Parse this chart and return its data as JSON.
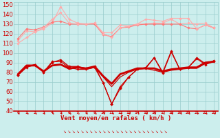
{
  "xlabel": "Vent moyen/en rafales ( km/h )",
  "x": [
    0,
    1,
    2,
    3,
    4,
    5,
    6,
    7,
    8,
    9,
    10,
    11,
    12,
    13,
    14,
    15,
    16,
    17,
    18,
    19,
    20,
    21,
    22,
    23
  ],
  "ylim": [
    40,
    153
  ],
  "yticks": [
    40,
    50,
    60,
    70,
    80,
    90,
    100,
    110,
    120,
    130,
    140,
    150
  ],
  "bg_color": "#cceeed",
  "grid_color": "#99cccc",
  "pink_light": "#ffaaaa",
  "pink_mid": "#ff7777",
  "dark_red": "#cc0000",
  "rafale1": [
    110,
    116,
    122,
    126,
    135,
    142,
    131,
    130,
    130,
    131,
    120,
    116,
    126,
    128,
    130,
    135,
    134,
    133,
    136,
    136,
    136,
    125,
    129,
    126
  ],
  "rafale2": [
    115,
    125,
    124,
    127,
    132,
    133,
    130,
    130,
    130,
    130,
    119,
    117,
    126,
    127,
    129,
    130,
    130,
    130,
    130,
    130,
    126,
    125,
    129,
    126
  ],
  "rafale3": [
    113,
    123,
    122,
    125,
    131,
    148,
    135,
    131,
    130,
    131,
    121,
    121,
    129,
    128,
    130,
    130,
    131,
    131,
    135,
    130,
    131,
    130,
    131,
    126
  ],
  "vent1": [
    77,
    86,
    88,
    80,
    90,
    93,
    86,
    86,
    84,
    86,
    69,
    47,
    65,
    75,
    83,
    85,
    95,
    80,
    102,
    83,
    85,
    95,
    89,
    92
  ],
  "vent2": [
    78,
    87,
    87,
    81,
    87,
    88,
    84,
    85,
    84,
    86,
    76,
    68,
    78,
    81,
    84,
    84,
    84,
    81,
    83,
    84,
    85,
    85,
    90,
    91
  ],
  "vent3": [
    78,
    86,
    87,
    80,
    87,
    88,
    83,
    85,
    83,
    85,
    75,
    65,
    75,
    80,
    83,
    84,
    82,
    80,
    82,
    83,
    84,
    84,
    89,
    91
  ],
  "vent4": [
    77,
    85,
    88,
    80,
    91,
    91,
    85,
    83,
    83,
    85,
    69,
    47,
    63,
    75,
    83,
    84,
    95,
    79,
    101,
    83,
    85,
    94,
    88,
    91
  ]
}
